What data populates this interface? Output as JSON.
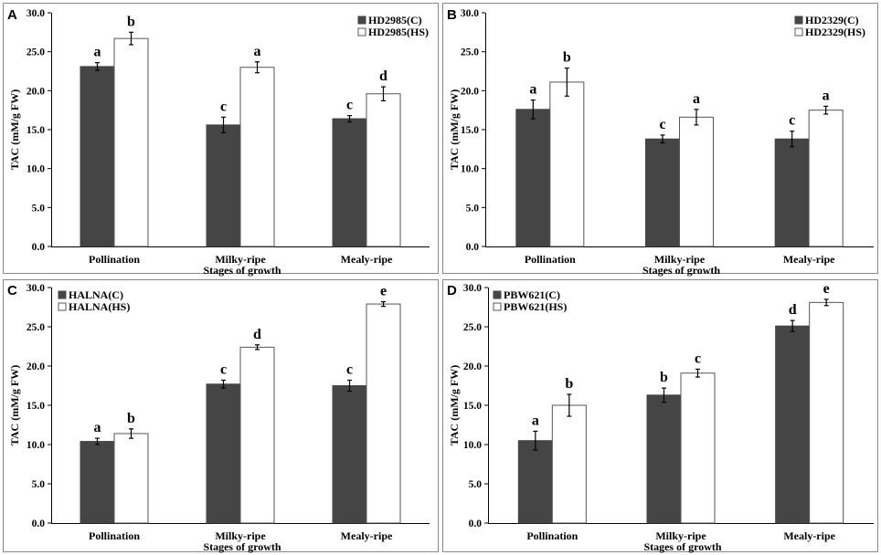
{
  "colors": {
    "control_bar": "#454545",
    "hs_bar": "#ffffff",
    "frame": "#888888",
    "axis": "#000000"
  },
  "chart_data": [
    {
      "panel_label": "A",
      "type": "bar",
      "title": "",
      "xlabel": "Stages of growth",
      "ylabel": "TAC (mM/g FW)",
      "ylim": [
        0,
        30
      ],
      "yticks": [
        "0.0",
        "5.0",
        "10.0",
        "15.0",
        "20.0",
        "25.0",
        "30.0"
      ],
      "categories": [
        "Pollination",
        "Milky-ripe",
        "Mealy-ripe"
      ],
      "legend_position": "top-right",
      "series": [
        {
          "name": "HD2985(C)",
          "values": [
            23.1,
            15.6,
            16.4
          ],
          "errors": [
            0.5,
            1.0,
            0.4
          ],
          "letters": [
            "a",
            "c",
            "c"
          ]
        },
        {
          "name": "HD2985(HS)",
          "values": [
            26.7,
            23.0,
            19.6
          ],
          "errors": [
            0.8,
            0.7,
            0.9
          ],
          "letters": [
            "b",
            "a",
            "d"
          ]
        }
      ]
    },
    {
      "panel_label": "B",
      "type": "bar",
      "title": "",
      "xlabel": "Stages of growth",
      "ylabel": "TAC (mM/g FW)",
      "ylim": [
        0,
        30
      ],
      "yticks": [
        "0.0",
        "5.0",
        "10.0",
        "15.0",
        "20.0",
        "25.0",
        "30.0"
      ],
      "categories": [
        "Pollination",
        "Milky-ripe",
        "Mealy-ripe"
      ],
      "legend_position": "top-right",
      "series": [
        {
          "name": "HD2329(C)",
          "values": [
            17.6,
            13.8,
            13.8
          ],
          "errors": [
            1.2,
            0.5,
            1.0
          ],
          "letters": [
            "a",
            "c",
            "c"
          ]
        },
        {
          "name": "HD2329(HS)",
          "values": [
            21.1,
            16.6,
            17.5
          ],
          "errors": [
            1.8,
            1.0,
            0.5
          ],
          "letters": [
            "b",
            "a",
            "a"
          ]
        }
      ]
    },
    {
      "panel_label": "C",
      "type": "bar",
      "title": "",
      "xlabel": "Stages of growth",
      "ylabel": "TAC (mM/g FW)",
      "ylim": [
        0,
        30
      ],
      "yticks": [
        "0.0",
        "5.0",
        "10.0",
        "15.0",
        "20.0",
        "25.0",
        "30.0"
      ],
      "categories": [
        "Pollination",
        "Milky-ripe",
        "Mealy-ripe"
      ],
      "legend_position": "top-left",
      "series": [
        {
          "name": "HALNA(C)",
          "values": [
            10.4,
            17.7,
            17.5
          ],
          "errors": [
            0.4,
            0.5,
            0.7
          ],
          "letters": [
            "a",
            "c",
            "c"
          ]
        },
        {
          "name": "HALNA(HS)",
          "values": [
            11.4,
            22.4,
            27.9
          ],
          "errors": [
            0.6,
            0.3,
            0.3
          ],
          "letters": [
            "b",
            "d",
            "e"
          ]
        }
      ]
    },
    {
      "panel_label": "D",
      "type": "bar",
      "title": "",
      "xlabel": "Stages of growth",
      "ylabel": "TAC (mM/g FW)",
      "ylim": [
        0,
        30
      ],
      "yticks": [
        "0.0",
        "5.0",
        "10.0",
        "15.0",
        "20.0",
        "25.0",
        "30.0"
      ],
      "categories": [
        "Pollination",
        "Milky-ripe",
        "Mealy-ripe"
      ],
      "legend_position": "top-left",
      "series": [
        {
          "name": "PBW621(C)",
          "values": [
            10.5,
            16.3,
            25.1
          ],
          "errors": [
            1.2,
            0.9,
            0.7
          ],
          "letters": [
            "a",
            "b",
            "d"
          ]
        },
        {
          "name": "PBW621(HS)",
          "values": [
            15.0,
            19.1,
            28.1
          ],
          "errors": [
            1.4,
            0.5,
            0.4
          ],
          "letters": [
            "b",
            "c",
            "e"
          ]
        }
      ]
    }
  ]
}
